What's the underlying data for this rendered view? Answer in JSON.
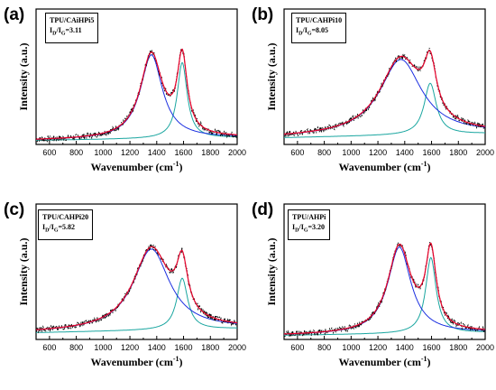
{
  "chart_data": [
    {
      "type": "line",
      "panel_label": "(a)",
      "legend_lines": [
        "TPU/CAiHPi5",
        "ID/IG=3.11"
      ],
      "id_ig": "3.11",
      "sample": "TPU/CAiHPi5",
      "xlabel": "Wavenumber (cm-1)",
      "ylabel": "Intensity (a.u.)",
      "xlim": [
        500,
        2000
      ],
      "x_ticks": [
        600,
        800,
        1000,
        1200,
        1400,
        1600,
        1800,
        2000
      ],
      "y_ticks": [],
      "grid": false,
      "series": [],
      "peaks": {
        "D": {
          "center": 1360,
          "height": 0.62,
          "width": 200
        },
        "G": {
          "center": 1590,
          "height": 0.56,
          "width": 90
        },
        "baseline": [
          0.03,
          0.05
        ]
      }
    },
    {
      "type": "line",
      "panel_label": "(b)",
      "legend_lines": [
        "TPU/CAHPi10",
        "ID/IG=8.05"
      ],
      "id_ig": "8.05",
      "sample": "TPU/CAHPi10",
      "xlabel": "Wavenumber (cm-1)",
      "ylabel": "Intensity (a.u.)",
      "xlim": [
        500,
        2000
      ],
      "x_ticks": [
        600,
        800,
        1000,
        1200,
        1400,
        1600,
        1800,
        2000
      ],
      "y_ticks": [],
      "grid": false,
      "series": [],
      "peaks": {
        "D": {
          "center": 1370,
          "height": 0.56,
          "width": 380
        },
        "G": {
          "center": 1590,
          "height": 0.38,
          "width": 110
        },
        "baseline": [
          0.05,
          0.08
        ]
      }
    },
    {
      "type": "line",
      "panel_label": "(c)",
      "legend_lines": [
        "TPU/CAHPi20",
        "ID/IG=5.82"
      ],
      "id_ig": "5.82",
      "sample": "TPU/CAHPi20",
      "xlabel": "Wavenumber (cm-1)",
      "ylabel": "Intensity (a.u.)",
      "xlim": [
        500,
        2000
      ],
      "x_ticks": [
        600,
        800,
        1000,
        1200,
        1400,
        1600,
        1800,
        2000
      ],
      "y_ticks": [],
      "grid": false,
      "series": [],
      "peaks": {
        "D": {
          "center": 1360,
          "height": 0.6,
          "width": 330
        },
        "G": {
          "center": 1590,
          "height": 0.38,
          "width": 100
        },
        "baseline": [
          0.05,
          0.08
        ]
      }
    },
    {
      "type": "line",
      "panel_label": "(d)",
      "legend_lines": [
        "TPU/AHPi",
        "ID/IG=3.20"
      ],
      "id_ig": "3.20",
      "sample": "TPU/AHPi",
      "xlabel": "Wavenumber (cm-1)",
      "ylabel": "Intensity (a.u.)",
      "xlim": [
        500,
        2000
      ],
      "x_ticks": [
        600,
        800,
        1000,
        1200,
        1400,
        1600,
        1800,
        2000
      ],
      "y_ticks": [],
      "grid": false,
      "series": [],
      "peaks": {
        "D": {
          "center": 1360,
          "height": 0.64,
          "width": 210
        },
        "G": {
          "center": 1595,
          "height": 0.56,
          "width": 95
        },
        "baseline": [
          0.03,
          0.05
        ]
      }
    }
  ],
  "colors": {
    "experimental": "#000000",
    "fit_total": "#e8002a",
    "D_band": "#1a2ee0",
    "G_band": "#1aa6a0"
  },
  "curve_names": [
    "experimental",
    "fit_total",
    "D_band",
    "G_band"
  ]
}
